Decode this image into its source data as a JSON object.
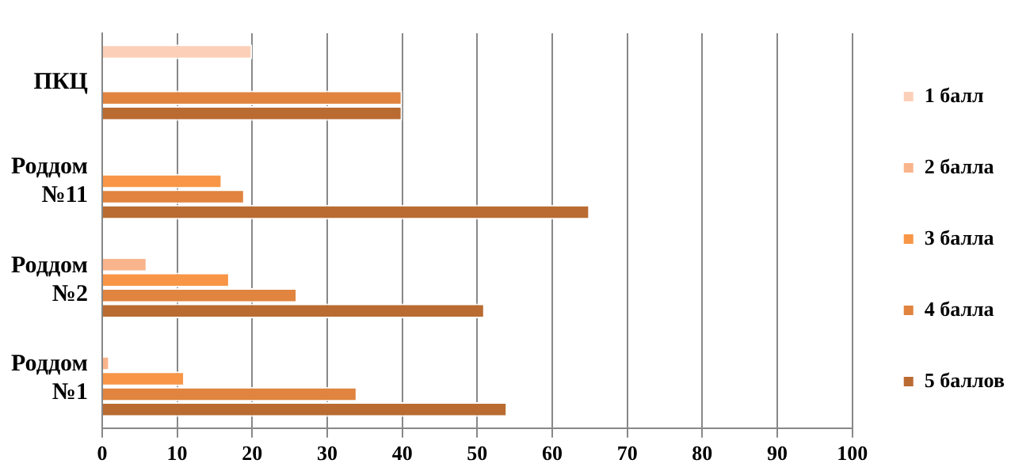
{
  "chart_data": {
    "type": "bar",
    "orientation": "horizontal",
    "categories": [
      "ПКЦ",
      "Роддом №11",
      "Роддом №2",
      "Роддом №1"
    ],
    "series": [
      {
        "name": "1 балл",
        "color": "#fcd0b8",
        "values": [
          20,
          null,
          null,
          null
        ]
      },
      {
        "name": "2 балла",
        "color": "#f9b48c",
        "values": [
          null,
          null,
          6,
          1
        ]
      },
      {
        "name": "3 балла",
        "color": "#f79646",
        "values": [
          null,
          16,
          17,
          11
        ]
      },
      {
        "name": "4 балла",
        "color": "#e0843f",
        "values": [
          40,
          19,
          26,
          34
        ]
      },
      {
        "name": "5 баллов",
        "color": "#b96b32",
        "values": [
          40,
          65,
          51,
          54
        ]
      }
    ],
    "xlim": [
      0,
      100
    ],
    "xticks": [
      0,
      10,
      20,
      30,
      40,
      50,
      60,
      70,
      80,
      90,
      100
    ],
    "grid": "x",
    "legend": "right"
  }
}
